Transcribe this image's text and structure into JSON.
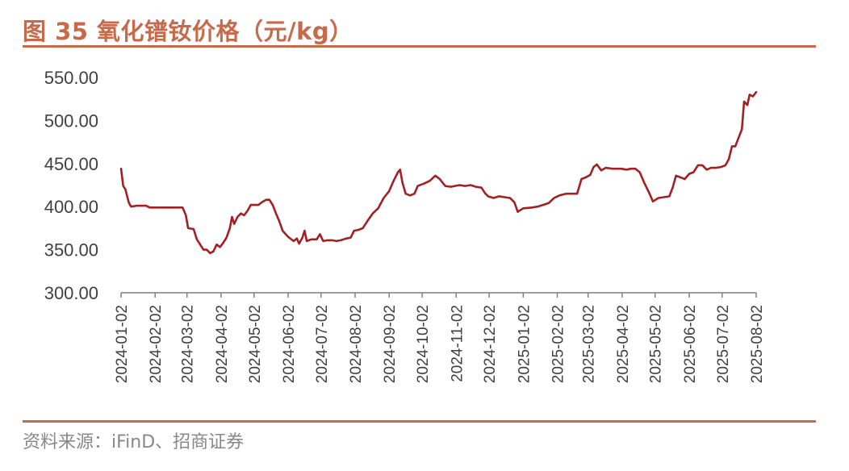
{
  "title": "图 35  氧化镨钕价格（元/kg）",
  "source": "资料来源：iFinD、招商证券",
  "colors": {
    "accent": "#c8694a",
    "series": "#a41f22",
    "axis": "#7f7f7f",
    "text": "#404040"
  },
  "chart_data": {
    "type": "line",
    "title": "图 35  氧化镨钕价格（元/kg）",
    "xlabel": "",
    "ylabel": "",
    "ylim": [
      300,
      550
    ],
    "y_ticks": [
      "550.00",
      "500.00",
      "450.00",
      "400.00",
      "350.00",
      "300.00"
    ],
    "x_ticks": [
      "2024-01-02",
      "2024-02-02",
      "2024-03-02",
      "2024-04-02",
      "2024-05-02",
      "2024-06-02",
      "2024-07-02",
      "2024-08-02",
      "2024-09-02",
      "2024-10-02",
      "2024-11-02",
      "2024-12-02",
      "2025-01-02",
      "2025-02-02",
      "2025-03-02",
      "2025-04-02",
      "2025-05-02",
      "2025-06-02",
      "2025-07-02",
      "2025-08-02"
    ],
    "grid": false,
    "legend": "none",
    "series": [
      {
        "points": [
          [
            "2024-01-02",
            444
          ],
          [
            "2024-01-04",
            424
          ],
          [
            "2024-01-06",
            420
          ],
          [
            "2024-01-09",
            405
          ],
          [
            "2024-01-11",
            400
          ],
          [
            "2024-01-16",
            401
          ],
          [
            "2024-01-25",
            401
          ],
          [
            "2024-01-28",
            399
          ],
          [
            "2024-02-15",
            399
          ],
          [
            "2024-02-27",
            399
          ],
          [
            "2024-03-01",
            390
          ],
          [
            "2024-03-03",
            375
          ],
          [
            "2024-03-08",
            374
          ],
          [
            "2024-03-11",
            362
          ],
          [
            "2024-03-14",
            356
          ],
          [
            "2024-03-17",
            350
          ],
          [
            "2024-03-20",
            350
          ],
          [
            "2024-03-23",
            346
          ],
          [
            "2024-03-26",
            348
          ],
          [
            "2024-03-29",
            356
          ],
          [
            "2024-04-01",
            353
          ],
          [
            "2024-04-04",
            358
          ],
          [
            "2024-04-07",
            364
          ],
          [
            "2024-04-10",
            375
          ],
          [
            "2024-04-12",
            388
          ],
          [
            "2024-04-14",
            380
          ],
          [
            "2024-04-17",
            388
          ],
          [
            "2024-04-20",
            392
          ],
          [
            "2024-04-23",
            390
          ],
          [
            "2024-04-26",
            395
          ],
          [
            "2024-04-29",
            402
          ],
          [
            "2024-05-06",
            402
          ],
          [
            "2024-05-09",
            405
          ],
          [
            "2024-05-13",
            408
          ],
          [
            "2024-05-16",
            408
          ],
          [
            "2024-05-19",
            402
          ],
          [
            "2024-05-22",
            392
          ],
          [
            "2024-05-25",
            383
          ],
          [
            "2024-05-28",
            372
          ],
          [
            "2024-06-02",
            365
          ],
          [
            "2024-06-07",
            360
          ],
          [
            "2024-06-10",
            363
          ],
          [
            "2024-06-12",
            357
          ],
          [
            "2024-06-15",
            364
          ],
          [
            "2024-06-17",
            372
          ],
          [
            "2024-06-19",
            360
          ],
          [
            "2024-06-23",
            362
          ],
          [
            "2024-06-28",
            362
          ],
          [
            "2024-07-01",
            368
          ],
          [
            "2024-07-04",
            360
          ],
          [
            "2024-07-08",
            361
          ],
          [
            "2024-07-12",
            361
          ],
          [
            "2024-07-16",
            360
          ],
          [
            "2024-07-20",
            361
          ],
          [
            "2024-07-25",
            363
          ],
          [
            "2024-07-29",
            364
          ],
          [
            "2024-08-01",
            372
          ],
          [
            "2024-08-05",
            373
          ],
          [
            "2024-08-09",
            375
          ],
          [
            "2024-08-13",
            383
          ],
          [
            "2024-08-18",
            392
          ],
          [
            "2024-08-23",
            398
          ],
          [
            "2024-08-28",
            410
          ],
          [
            "2024-09-02",
            418
          ],
          [
            "2024-09-06",
            430
          ],
          [
            "2024-09-10",
            440
          ],
          [
            "2024-09-12",
            443
          ],
          [
            "2024-09-14",
            428
          ],
          [
            "2024-09-17",
            415
          ],
          [
            "2024-09-21",
            413
          ],
          [
            "2024-09-25",
            415
          ],
          [
            "2024-09-28",
            424
          ],
          [
            "2024-10-04",
            427
          ],
          [
            "2024-10-09",
            430
          ],
          [
            "2024-10-14",
            436
          ],
          [
            "2024-10-18",
            432
          ],
          [
            "2024-10-23",
            424
          ],
          [
            "2024-10-28",
            423
          ],
          [
            "2024-11-05",
            425
          ],
          [
            "2024-11-10",
            424
          ],
          [
            "2024-11-15",
            425
          ],
          [
            "2024-11-20",
            423
          ],
          [
            "2024-11-25",
            422
          ],
          [
            "2024-11-28",
            416
          ],
          [
            "2024-12-01",
            412
          ],
          [
            "2024-12-06",
            410
          ],
          [
            "2024-12-11",
            412
          ],
          [
            "2024-12-16",
            411
          ],
          [
            "2024-12-21",
            410
          ],
          [
            "2024-12-25",
            405
          ],
          [
            "2024-12-28",
            394
          ],
          [
            "2025-01-02",
            398
          ],
          [
            "2025-01-10",
            399
          ],
          [
            "2025-01-15",
            400
          ],
          [
            "2025-01-20",
            402
          ],
          [
            "2025-01-25",
            404
          ],
          [
            "2025-01-30",
            410
          ],
          [
            "2025-02-04",
            413
          ],
          [
            "2025-02-10",
            415
          ],
          [
            "2025-02-15",
            415
          ],
          [
            "2025-02-20",
            415
          ],
          [
            "2025-02-24",
            432
          ],
          [
            "2025-02-28",
            434
          ],
          [
            "2025-03-04",
            437
          ],
          [
            "2025-03-07",
            446
          ],
          [
            "2025-03-10",
            449
          ],
          [
            "2025-03-14",
            442
          ],
          [
            "2025-03-18",
            445
          ],
          [
            "2025-03-24",
            444
          ],
          [
            "2025-04-01",
            444
          ],
          [
            "2025-04-06",
            443
          ],
          [
            "2025-04-10",
            444
          ],
          [
            "2025-04-14",
            444
          ],
          [
            "2025-04-18",
            440
          ],
          [
            "2025-04-22",
            428
          ],
          [
            "2025-04-27",
            415
          ],
          [
            "2025-04-30",
            406
          ],
          [
            "2025-05-05",
            410
          ],
          [
            "2025-05-10",
            411
          ],
          [
            "2025-05-15",
            412
          ],
          [
            "2025-05-18",
            422
          ],
          [
            "2025-05-21",
            436
          ],
          [
            "2025-05-25",
            434
          ],
          [
            "2025-05-29",
            432
          ],
          [
            "2025-06-02",
            438
          ],
          [
            "2025-06-06",
            440
          ],
          [
            "2025-06-10",
            448
          ],
          [
            "2025-06-14",
            448
          ],
          [
            "2025-06-18",
            443
          ],
          [
            "2025-06-22",
            445
          ],
          [
            "2025-06-26",
            445
          ],
          [
            "2025-07-01",
            446
          ],
          [
            "2025-07-05",
            448
          ],
          [
            "2025-07-08",
            455
          ],
          [
            "2025-07-11",
            470
          ],
          [
            "2025-07-14",
            470
          ],
          [
            "2025-07-17",
            480
          ],
          [
            "2025-07-20",
            490
          ],
          [
            "2025-07-22",
            522
          ],
          [
            "2025-07-25",
            518
          ],
          [
            "2025-07-27",
            530
          ],
          [
            "2025-07-30",
            528
          ],
          [
            "2025-08-02",
            533
          ]
        ]
      }
    ]
  }
}
